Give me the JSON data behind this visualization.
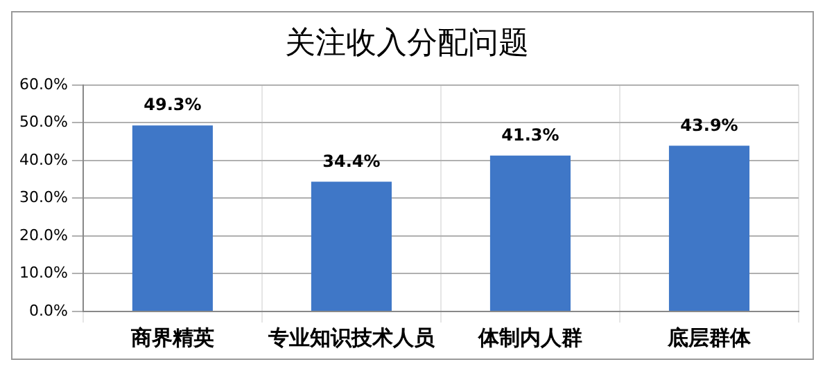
{
  "chart_data": {
    "type": "bar",
    "title": "关注收入分配问题",
    "categories": [
      "商界精英",
      "专业知识技术人员",
      "体制内人群",
      "底层群体"
    ],
    "values": [
      49.3,
      34.4,
      41.3,
      43.9
    ],
    "value_labels": [
      "49.3%",
      "34.4%",
      "41.3%",
      "43.9%"
    ],
    "color": "#3f77c7",
    "ylim": [
      0,
      60
    ],
    "yticks": [
      {
        "value": 0,
        "label": "0.0%"
      },
      {
        "value": 10,
        "label": "10.0%"
      },
      {
        "value": 20,
        "label": "20.0%"
      },
      {
        "value": 30,
        "label": "30.0%"
      },
      {
        "value": 40,
        "label": "40.0%"
      },
      {
        "value": 50,
        "label": "50.0%"
      },
      {
        "value": 60,
        "label": "60.0%"
      }
    ],
    "grid": true,
    "legend": false
  }
}
